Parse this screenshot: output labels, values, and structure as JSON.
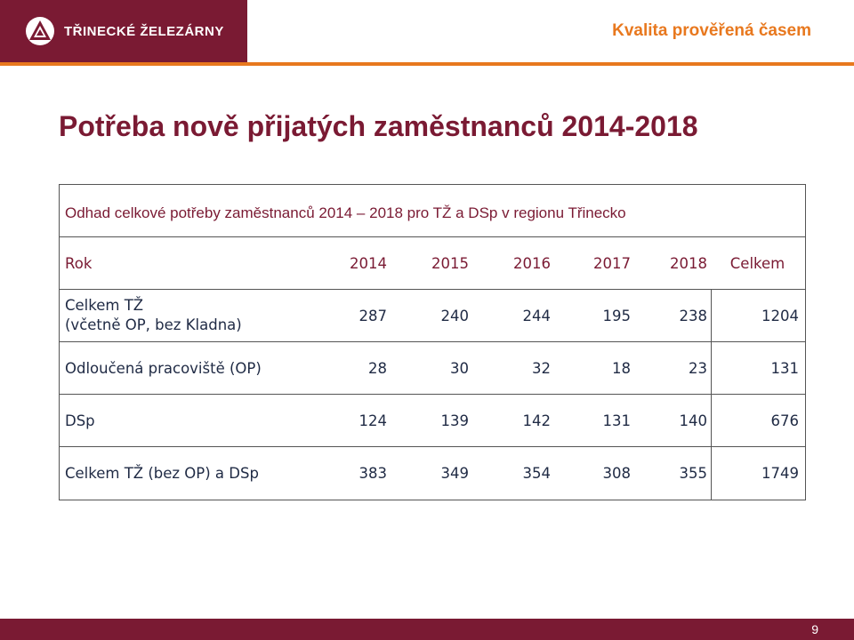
{
  "header": {
    "logo_text": "TŘINECKÉ ŽELEZÁRNY",
    "tagline": "Kvalita prověřená časem"
  },
  "title": "Potřeba nově přijatých zaměstnanců 2014-2018",
  "table": {
    "caption": "Odhad celkové potřeby zaměstnanců 2014 – 2018 pro TŽ a DSp v regionu Třinecko",
    "header": [
      "Rok",
      "2014",
      "2015",
      "2016",
      "2017",
      "2018",
      "Celkem"
    ],
    "rows": [
      {
        "label_line1": "Celkem TŽ",
        "label_line2": "(včetně OP, bez Kladna)",
        "values": [
          "287",
          "240",
          "244",
          "195",
          "238"
        ],
        "total": "1204"
      },
      {
        "label": "Odloučená pracoviště (OP)",
        "values": [
          "28",
          "30",
          "32",
          "18",
          "23"
        ],
        "total": "131"
      },
      {
        "label": "DSp",
        "values": [
          "124",
          "139",
          "142",
          "131",
          "140"
        ],
        "total": "676"
      },
      {
        "label": "Celkem TŽ (bez OP) a DSp",
        "values": [
          "383",
          "349",
          "354",
          "308",
          "355"
        ],
        "total": "1749"
      }
    ]
  },
  "footer": {
    "page_number": "9"
  },
  "colors": {
    "brand": "#7a1a33",
    "accent": "#e8781e",
    "text": "#1f2a44"
  }
}
